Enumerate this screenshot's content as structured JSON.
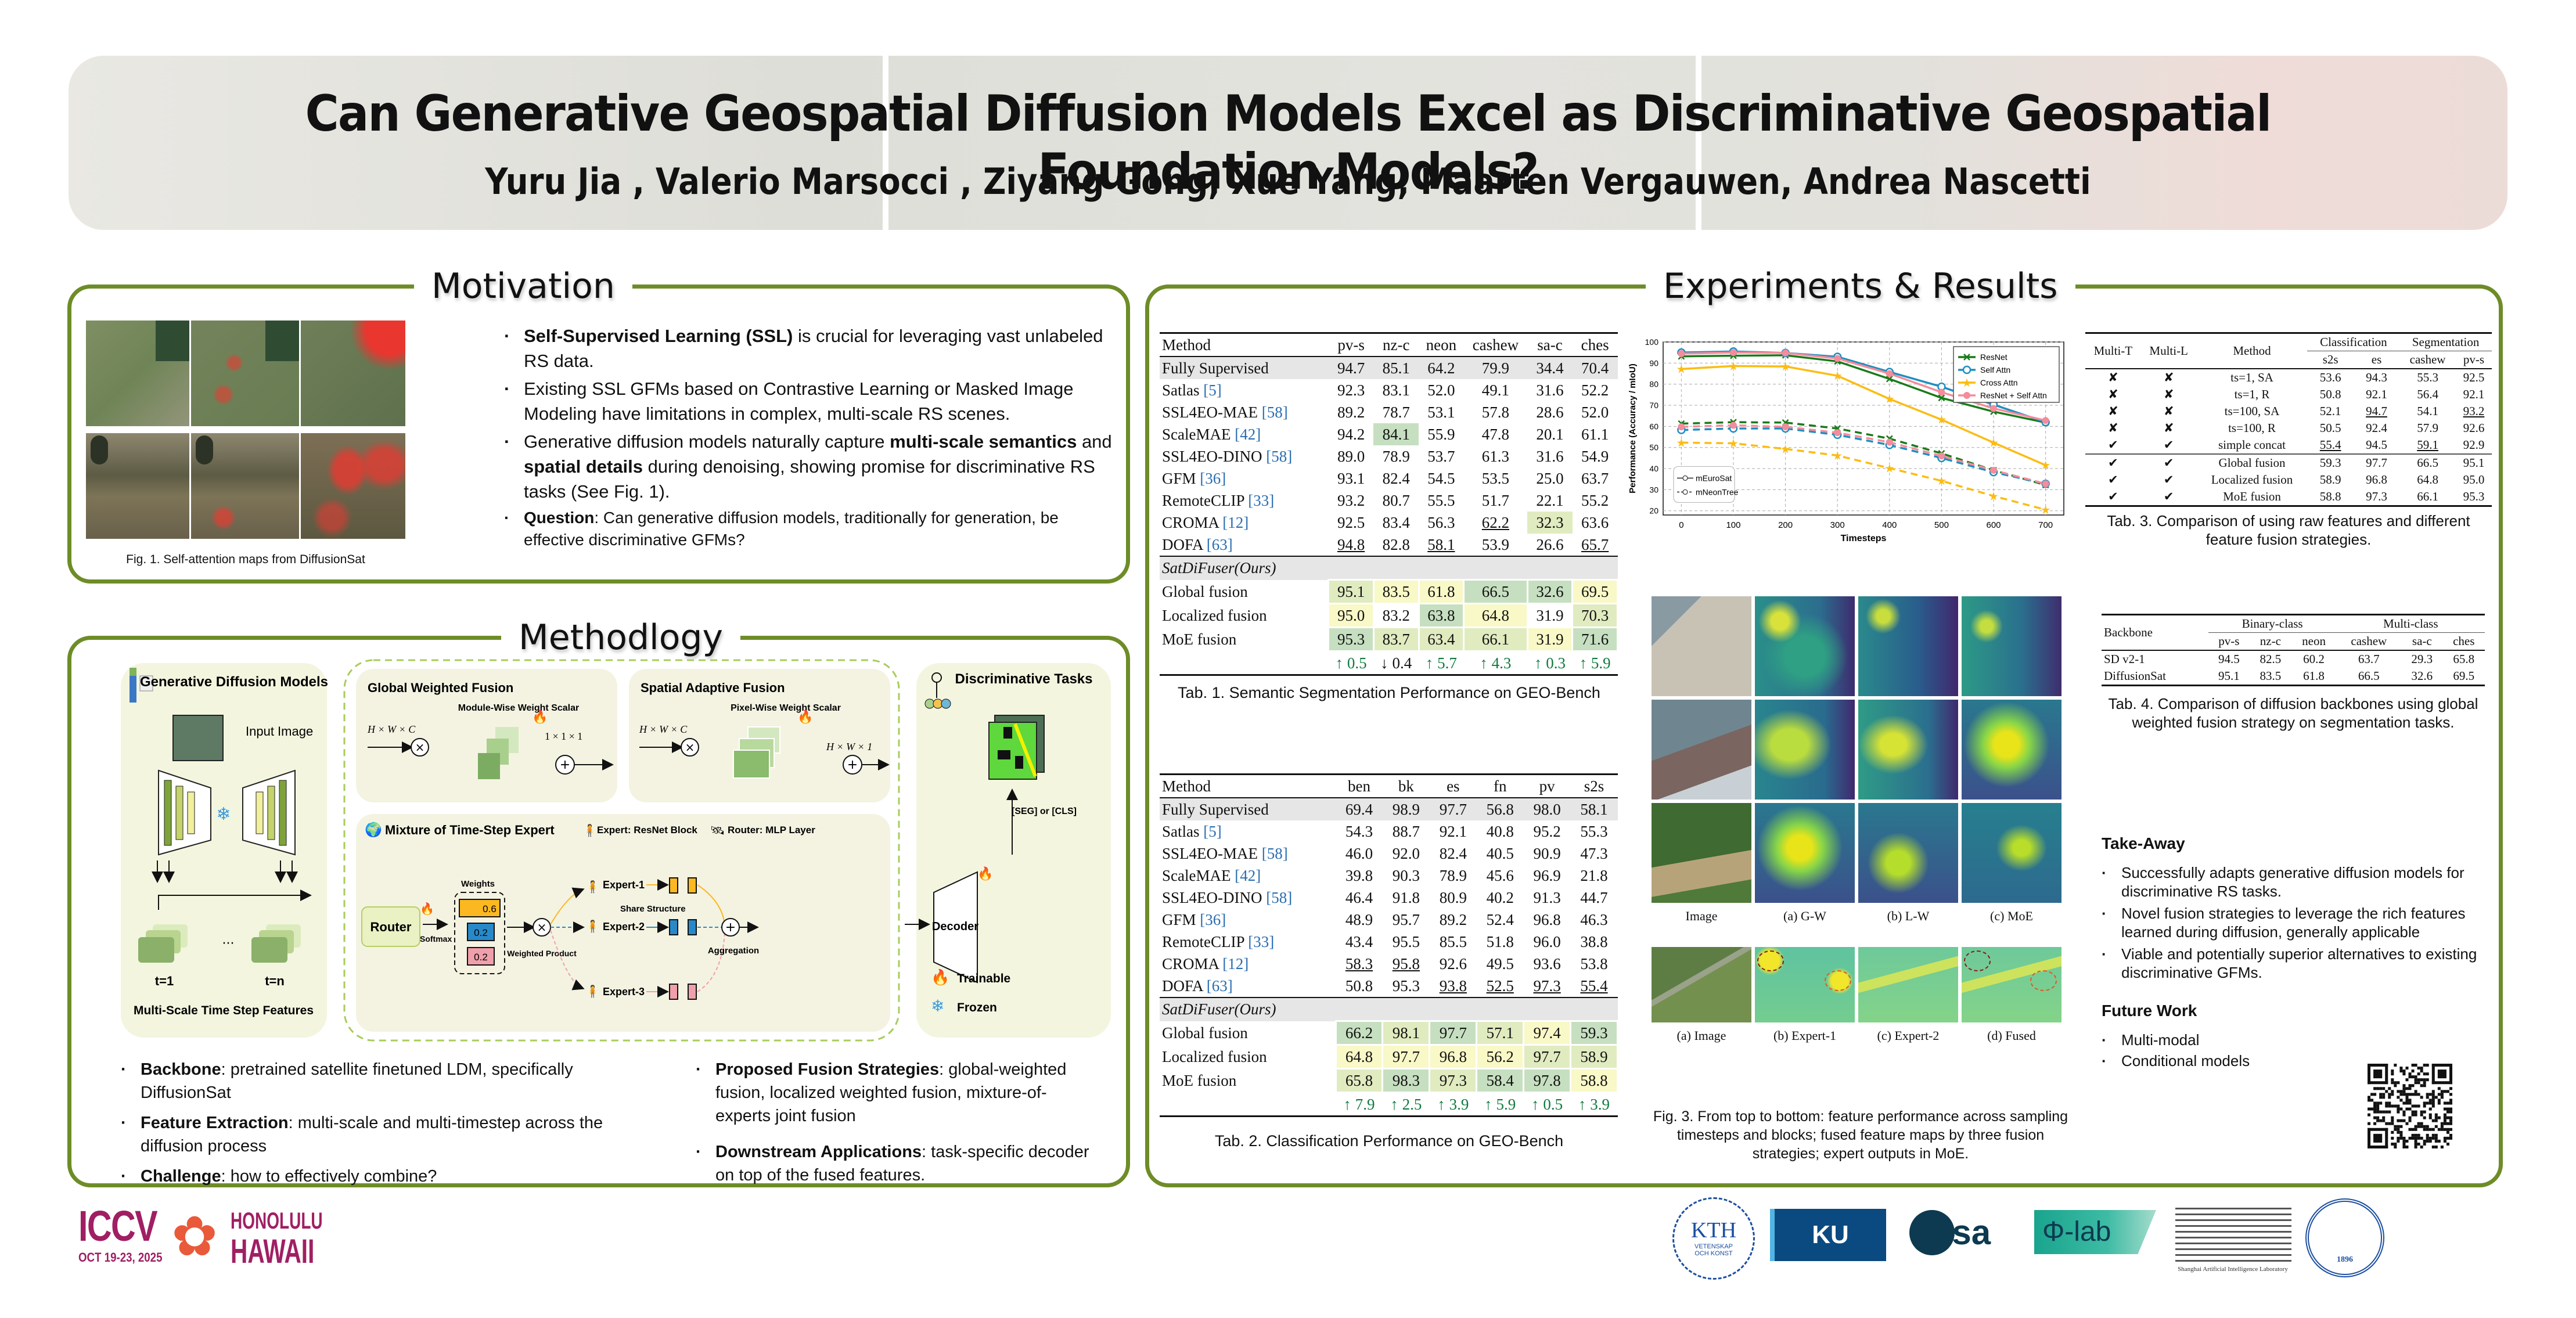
{
  "header": {
    "title": "Can Generative Geospatial Diffusion Models Excel as Discriminative Geospatial Foundation Models?",
    "authors": "Yuru Jia ,  Valerio Marsocci ,  Ziyang Gong,  Xue Yang,  Maarten Vergauwen,  Andrea Nascetti"
  },
  "motivation": {
    "title": "Motivation",
    "fig_caption": "Fig. 1. Self-attention maps from DiffusionSat",
    "bullets": [
      {
        "bold": "Self-Supervised Learning (SSL)",
        "text": "  is crucial for leveraging vast unlabeled RS data."
      },
      {
        "bold": "",
        "text": "Existing SSL GFMs based on Contrastive Learning or Masked Image Modeling have limitations in complex, multi-scale RS scenes."
      },
      {
        "pre": "Generative diffusion models naturally capture ",
        "bold1": "multi-scale semantics",
        "mid": " and ",
        "bold2": "spatial details",
        "post": " during denoising, showing promise for discriminative RS tasks  (See Fig. 1)."
      },
      {
        "bold": "Question",
        "text": ": Can generative diffusion models, traditionally for generation, be effective discriminative GFMs?"
      }
    ]
  },
  "methodology": {
    "title": "Methodlogy",
    "diagram": {
      "gen_title": "Generative Diffusion Models",
      "input_image": "Input Image",
      "ellipsis": "···",
      "t1": "t=1",
      "tn": "t=n",
      "features_label": "Multi-Scale Time Step Features",
      "gwf_title": "Global Weighted Fusion",
      "gwf_sub": "Module-Wise Weight Scalar",
      "gwf_in": "H × W × C",
      "gwf_out": "1 × 1 × 1",
      "saf_title": "Spatial Adaptive Fusion",
      "saf_sub": "Pixel-Wise Weight Scalar",
      "saf_in": "H × W × C",
      "saf_out": "H × W × 1",
      "moe_title": "Mixture of Time-Step Expert",
      "expert_legend": "Expert: ResNet Block",
      "router_legend": "Router: MLP Layer",
      "router": "Router",
      "softmax": "Softmax",
      "weights_label": "Weights",
      "weights": [
        "0.6",
        "0.2",
        "0.2"
      ],
      "weighted_product": "Weighted Product",
      "experts": [
        "Expert-1",
        "Expert-2",
        "Expert-3"
      ],
      "share_structure": "Share Structure",
      "aggregation": "Aggregation",
      "disc_title": "Discriminative Tasks",
      "task_label": "[SEG] or [CLS]",
      "decoder": "Decoder",
      "trainable": "Trainable",
      "frozen": "Frozen"
    },
    "bullets_left": [
      {
        "bold": "Backbone",
        "text": ": pretrained satellite finetuned LDM, specifically DiffusionSat"
      },
      {
        "bold": "Feature Extraction",
        "text": ": multi-scale and multi-timestep across the diffusion process"
      },
      {
        "bold": "Challenge",
        "text": ": how to effectively combine?"
      }
    ],
    "bullets_right": [
      {
        "bold": "Proposed Fusion Strategies",
        "text": ":  global-weighted fusion, localized weighted fusion, mixture-of-experts joint fusion"
      },
      {
        "bold": "Downstream Applications",
        "text": ": task-specific decoder on top of the fused features."
      }
    ]
  },
  "results": {
    "title": "Experiments & Results",
    "tab1": {
      "caption": "Tab. 1. Semantic Segmentation Performance on GEO-Bench",
      "columns": [
        "Method",
        "pv-s",
        "nz-c",
        "neon",
        "cashew",
        "sa-c",
        "ches"
      ],
      "baselines": [
        {
          "name": "Fully Supervised",
          "ref": "",
          "vals": [
            "94.7",
            "85.1",
            "64.2",
            "79.9",
            "34.4",
            "70.4"
          ]
        },
        {
          "name": "Satlas ",
          "ref": "[5]",
          "vals": [
            "92.3",
            "83.1",
            "52.0",
            "49.1",
            "31.6",
            "52.2"
          ]
        },
        {
          "name": "SSL4EO-MAE ",
          "ref": "[58]",
          "vals": [
            "89.2",
            "78.7",
            "53.1",
            "57.8",
            "28.6",
            "52.0"
          ]
        },
        {
          "name": "ScaleMAE ",
          "ref": "[42]",
          "vals": [
            "94.2",
            "84.1",
            "55.9",
            "47.8",
            "20.1",
            "61.1"
          ]
        },
        {
          "name": "SSL4EO-DINO ",
          "ref": "[58]",
          "vals": [
            "89.0",
            "78.9",
            "53.7",
            "61.3",
            "31.6",
            "54.9"
          ]
        },
        {
          "name": "GFM ",
          "ref": "[36]",
          "vals": [
            "93.1",
            "82.4",
            "54.5",
            "53.5",
            "25.0",
            "63.7"
          ]
        },
        {
          "name": "RemoteCLIP ",
          "ref": "[33]",
          "vals": [
            "93.2",
            "80.7",
            "55.5",
            "51.7",
            "22.1",
            "55.2"
          ]
        },
        {
          "name": "CROMA ",
          "ref": "[12]",
          "vals": [
            "92.5",
            "83.4",
            "56.3",
            "62.2",
            "32.3",
            "63.6"
          ]
        },
        {
          "name": "DOFA ",
          "ref": "[63]",
          "vals": [
            "94.8",
            "82.8",
            "58.1",
            "53.9",
            "26.6",
            "65.7"
          ]
        }
      ],
      "ours_label": "SatDiFuser(Ours)",
      "ours": [
        {
          "name": "Global fusion",
          "vals": [
            "95.1",
            "83.5",
            "61.8",
            "66.5",
            "32.6",
            "69.5"
          ]
        },
        {
          "name": "Localized fusion",
          "vals": [
            "95.0",
            "83.2",
            "63.8",
            "64.8",
            "31.9",
            "70.3"
          ]
        },
        {
          "name": "MoE fusion",
          "vals": [
            "95.3",
            "83.7",
            "63.4",
            "66.1",
            "31.9",
            "71.6"
          ]
        }
      ],
      "deltas": [
        "↑ 0.5",
        "↓ 0.4",
        "↑ 5.7",
        "↑ 4.3",
        "↑ 0.3",
        "↑ 5.9"
      ]
    },
    "tab2": {
      "caption": "Tab. 2. Classification Performance on GEO-Bench",
      "columns": [
        "Method",
        "ben",
        "bk",
        "es",
        "fn",
        "pv",
        "s2s"
      ],
      "baselines": [
        {
          "name": "Fully Supervised",
          "ref": "",
          "vals": [
            "69.4",
            "98.9",
            "97.7",
            "56.8",
            "98.0",
            "58.1"
          ]
        },
        {
          "name": "Satlas ",
          "ref": "[5]",
          "vals": [
            "54.3",
            "88.7",
            "92.1",
            "40.8",
            "95.2",
            "55.3"
          ]
        },
        {
          "name": "SSL4EO-MAE ",
          "ref": "[58]",
          "vals": [
            "46.0",
            "92.0",
            "82.4",
            "40.5",
            "90.9",
            "47.3"
          ]
        },
        {
          "name": "ScaleMAE ",
          "ref": "[42]",
          "vals": [
            "39.8",
            "90.3",
            "78.9",
            "45.6",
            "96.9",
            "21.8"
          ]
        },
        {
          "name": "SSL4EO-DINO ",
          "ref": "[58]",
          "vals": [
            "46.4",
            "91.8",
            "80.9",
            "40.2",
            "91.3",
            "44.7"
          ]
        },
        {
          "name": "GFM ",
          "ref": "[36]",
          "vals": [
            "48.9",
            "95.7",
            "89.2",
            "52.4",
            "96.8",
            "46.3"
          ]
        },
        {
          "name": "RemoteCLIP ",
          "ref": "[33]",
          "vals": [
            "43.4",
            "95.5",
            "85.5",
            "51.8",
            "96.0",
            "38.8"
          ]
        },
        {
          "name": "CROMA ",
          "ref": "[12]",
          "vals": [
            "58.3",
            "95.8",
            "92.6",
            "49.5",
            "93.6",
            "53.8"
          ]
        },
        {
          "name": "DOFA ",
          "ref": "[63]",
          "vals": [
            "50.8",
            "95.3",
            "93.8",
            "52.5",
            "97.3",
            "55.4"
          ]
        }
      ],
      "ours_label": "SatDiFuser(Ours)",
      "ours": [
        {
          "name": "Global fusion",
          "vals": [
            "66.2",
            "98.1",
            "97.7",
            "57.1",
            "97.4",
            "59.3"
          ]
        },
        {
          "name": "Localized fusion",
          "vals": [
            "64.8",
            "97.7",
            "96.8",
            "56.2",
            "97.7",
            "58.9"
          ]
        },
        {
          "name": "MoE fusion",
          "vals": [
            "65.8",
            "98.3",
            "97.3",
            "58.4",
            "97.8",
            "58.8"
          ]
        }
      ],
      "deltas": [
        "↑ 7.9",
        "↑ 2.5",
        "↑ 3.9",
        "↑ 5.9",
        "↑ 0.5",
        "↑ 3.9"
      ]
    },
    "tab3": {
      "caption": "Tab. 3. Comparison of using raw features and different feature fusion strategies.",
      "headers": {
        "multi_t": "Multi-T",
        "multi_l": "Multi-L",
        "method": "Method",
        "cls": "Classification",
        "seg": "Segmentation",
        "sub": [
          "s2s",
          "es",
          "cashew",
          "pv-s"
        ]
      },
      "rows": [
        {
          "t": "✘",
          "l": "✘",
          "method": "ts=1, SA",
          "vals": [
            "53.6",
            "94.3",
            "55.3",
            "92.5"
          ]
        },
        {
          "t": "✘",
          "l": "✘",
          "method": "ts=1, R",
          "vals": [
            "50.8",
            "92.1",
            "56.4",
            "92.1"
          ]
        },
        {
          "t": "✘",
          "l": "✘",
          "method": "ts=100, SA",
          "vals": [
            "52.1",
            "94.7",
            "54.1",
            "93.2"
          ]
        },
        {
          "t": "✘",
          "l": "✘",
          "method": "ts=100, R",
          "vals": [
            "50.5",
            "92.4",
            "57.9",
            "92.6"
          ]
        },
        {
          "t": "✔",
          "l": "✔",
          "method": "simple concat",
          "vals": [
            "55.4",
            "94.5",
            "59.1",
            "92.9"
          ]
        },
        {
          "t": "✔",
          "l": "✔",
          "method": "Global fusion",
          "vals": [
            "59.3",
            "97.7",
            "66.5",
            "95.1"
          ]
        },
        {
          "t": "✔",
          "l": "✔",
          "method": "Localized fusion",
          "vals": [
            "58.9",
            "96.8",
            "64.8",
            "95.0"
          ]
        },
        {
          "t": "✔",
          "l": "✔",
          "method": "MoE fusion",
          "vals": [
            "58.8",
            "97.3",
            "66.1",
            "95.3"
          ]
        }
      ]
    },
    "tab4": {
      "caption": "Tab. 4. Comparison of diffusion backbones using global weighted fusion strategy on segmentation tasks.",
      "headers": {
        "backbone": "Backbone",
        "binary": "Binary-class",
        "multi": "Multi-class",
        "sub": [
          "pv-s",
          "nz-c",
          "neon",
          "cashew",
          "sa-c",
          "ches"
        ]
      },
      "rows": [
        {
          "name": "SD v2-1",
          "vals": [
            "94.5",
            "82.5",
            "60.2",
            "63.7",
            "29.3",
            "65.8"
          ]
        },
        {
          "name": "DiffusionSat",
          "vals": [
            "95.1",
            "83.5",
            "61.8",
            "66.5",
            "32.6",
            "69.5"
          ]
        }
      ]
    },
    "fig3": {
      "row_labels": [
        "Image",
        "(a) G-W",
        "(b) L-W",
        "(c) MoE"
      ],
      "expert_labels": [
        "(a) Image",
        "(b) Expert-1",
        "(c) Expert-2",
        "(d) Fused"
      ],
      "caption": "Fig. 3. From top to bottom: feature performance across sampling timesteps and blocks; fused feature maps by three fusion strategies; expert outputs in MoE."
    },
    "takeaway": {
      "title": "Take-Away",
      "items": [
        "Successfully  adapts generative diffusion models for discriminative RS tasks.",
        "Novel fusion strategies to leverage the rich features learned during diffusion, generally applicable",
        "Viable and potentially superior alternatives to existing discriminative GFMs."
      ]
    },
    "future": {
      "title": "Future Work",
      "items": [
        "Multi-modal",
        "Conditional models"
      ]
    }
  },
  "logos": {
    "iccv": "ICCV",
    "iccv_date": "OCT 19-23, 2025",
    "iccv_city": "HONOLULU",
    "iccv_state": "HAWAII",
    "kth": "KTH",
    "kth_sub1": "VETENSKAP",
    "kth_sub2": "OCH KONST",
    "ku": "KU LEUVEN",
    "esa": "esa",
    "philab": "Φ-lab",
    "shlab": "Shanghai Artificial Intelligence Laboratory",
    "sjtu": "1896"
  },
  "chart_data": {
    "type": "line",
    "title": "",
    "xlabel": "Timesteps",
    "ylabel": "Performance (Accuracy / mIoU)",
    "x": [
      0,
      100,
      200,
      300,
      400,
      500,
      600,
      700
    ],
    "xticks": [
      "0",
      "100",
      "200",
      "300",
      "400",
      "500",
      "600",
      "700"
    ],
    "yticks": [
      "20",
      "30",
      "40",
      "50",
      "60",
      "70",
      "80",
      "90",
      "100"
    ],
    "ylim": [
      18,
      100
    ],
    "xlim": [
      -35,
      735
    ],
    "grid": true,
    "legend_position": "top-right",
    "style_legend_position": "bottom-left",
    "style_legend": [
      {
        "label": "mEuroSat",
        "dash": "solid"
      },
      {
        "label": "mNeonTree",
        "dash": "dashed"
      }
    ],
    "series": [
      {
        "name": "ResNet",
        "color": "#1a7a1a",
        "marker": "x",
        "dataset": "mEuroSat",
        "values": [
          93.2,
          93.5,
          93.7,
          90.8,
          82.5,
          73.5,
          67.0,
          61.8
        ]
      },
      {
        "name": "Self Attn",
        "color": "#1f8fc1",
        "marker": "circle-open",
        "dataset": "mEuroSat",
        "values": [
          95.0,
          95.5,
          94.8,
          93.0,
          85.8,
          78.8,
          70.3,
          62.0
        ]
      },
      {
        "name": "Cross Attn",
        "color": "#fbbc13",
        "marker": "star",
        "dataset": "mEuroSat",
        "values": [
          87.2,
          88.6,
          88.4,
          84.0,
          73.0,
          63.2,
          52.3,
          41.6
        ]
      },
      {
        "name": "ResNet + Self Attn",
        "color": "#f48c9b",
        "marker": "circle",
        "dataset": "mEuroSat",
        "values": [
          94.5,
          95.0,
          94.8,
          92.2,
          85.0,
          76.2,
          68.5,
          62.8
        ]
      },
      {
        "name": "ResNet",
        "color": "#1a7a1a",
        "marker": "x",
        "dataset": "mNeonTree",
        "values": [
          61.3,
          62.0,
          61.8,
          59.0,
          54.2,
          47.2,
          39.2,
          32.2
        ]
      },
      {
        "name": "Self Attn",
        "color": "#1f8fc1",
        "marker": "circle-open",
        "dataset": "mNeonTree",
        "values": [
          58.3,
          59.0,
          59.0,
          56.0,
          51.2,
          45.0,
          38.3,
          32.8
        ]
      },
      {
        "name": "Cross Attn",
        "color": "#fbbc13",
        "marker": "star",
        "dataset": "mNeonTree",
        "values": [
          52.3,
          52.0,
          49.3,
          46.2,
          40.2,
          34.2,
          27.0,
          20.5
        ]
      },
      {
        "name": "ResNet + Self Attn",
        "color": "#f48c9b",
        "marker": "circle",
        "dataset": "mNeonTree",
        "values": [
          59.8,
          60.5,
          59.8,
          57.0,
          52.5,
          46.0,
          39.2,
          32.8
        ]
      }
    ]
  },
  "colors": {
    "panel_border": "#6e8c27",
    "up": "#0f7a3e",
    "ref": "#2a6db0",
    "best": "#c6dfc0",
    "second": "#e0ebc0",
    "third": "#f9f8c7"
  }
}
